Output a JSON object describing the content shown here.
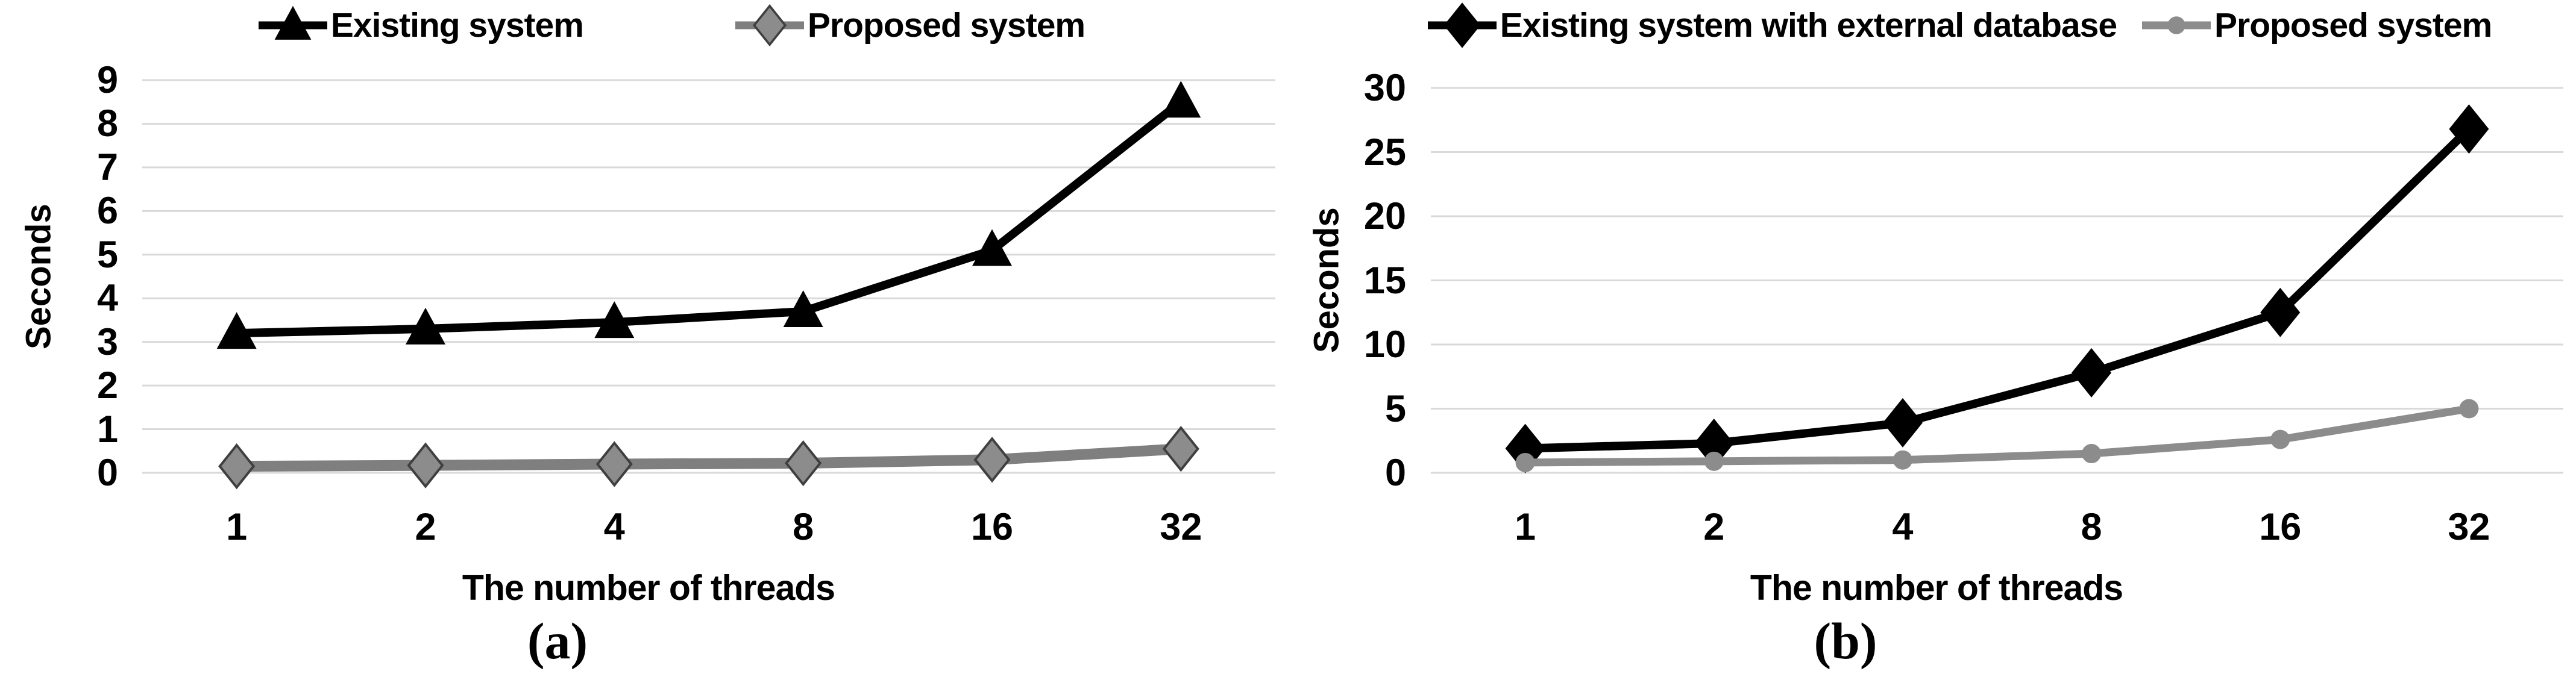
{
  "colors": {
    "background": "#FFFFFF",
    "gridline": "#D9D9D9",
    "text": "#000000",
    "black_series": "#000000",
    "gray_series": "#8C8C8C"
  },
  "chart_data": [
    {
      "type": "line",
      "panel": "a",
      "caption": "(a)",
      "title": "",
      "xlabel": "The number of threads",
      "ylabel": "Seconds",
      "categories": [
        "1",
        "2",
        "4",
        "8",
        "16",
        "32"
      ],
      "ylim": [
        0,
        9
      ],
      "yticks": [
        "0",
        "1",
        "2",
        "3",
        "4",
        "5",
        "6",
        "7",
        "8",
        "9"
      ],
      "grid": true,
      "legend_position": "top",
      "series": [
        {
          "name": "Existing system",
          "marker": "triangle",
          "color": "#000000",
          "values": [
            3.2,
            3.3,
            3.45,
            3.7,
            5.1,
            8.5
          ]
        },
        {
          "name": "Proposed system",
          "marker": "diamond",
          "color": "#7F7F7F",
          "marker_fill": "#8C8C8C",
          "marker_stroke": "#3F3F3F",
          "values": [
            0.15,
            0.17,
            0.2,
            0.22,
            0.3,
            0.55
          ]
        }
      ]
    },
    {
      "type": "line",
      "panel": "b",
      "caption": "(b)",
      "title": "",
      "xlabel": "The number of threads",
      "ylabel": "Seconds",
      "categories": [
        "1",
        "2",
        "4",
        "8",
        "16",
        "32"
      ],
      "ylim": [
        0,
        30
      ],
      "yticks": [
        "0",
        "5",
        "10",
        "15",
        "20",
        "25",
        "30"
      ],
      "grid": true,
      "legend_position": "top",
      "series": [
        {
          "name": "Existing system with external database",
          "marker": "diamond",
          "color": "#000000",
          "marker_fill": "#000000",
          "values": [
            1.9,
            2.3,
            3.9,
            7.8,
            12.5,
            26.8
          ]
        },
        {
          "name": "Proposed system",
          "marker": "circle",
          "color": "#8C8C8C",
          "marker_fill": "#8C8C8C",
          "values": [
            0.8,
            0.9,
            1.0,
            1.5,
            2.6,
            5.0
          ]
        }
      ]
    }
  ]
}
